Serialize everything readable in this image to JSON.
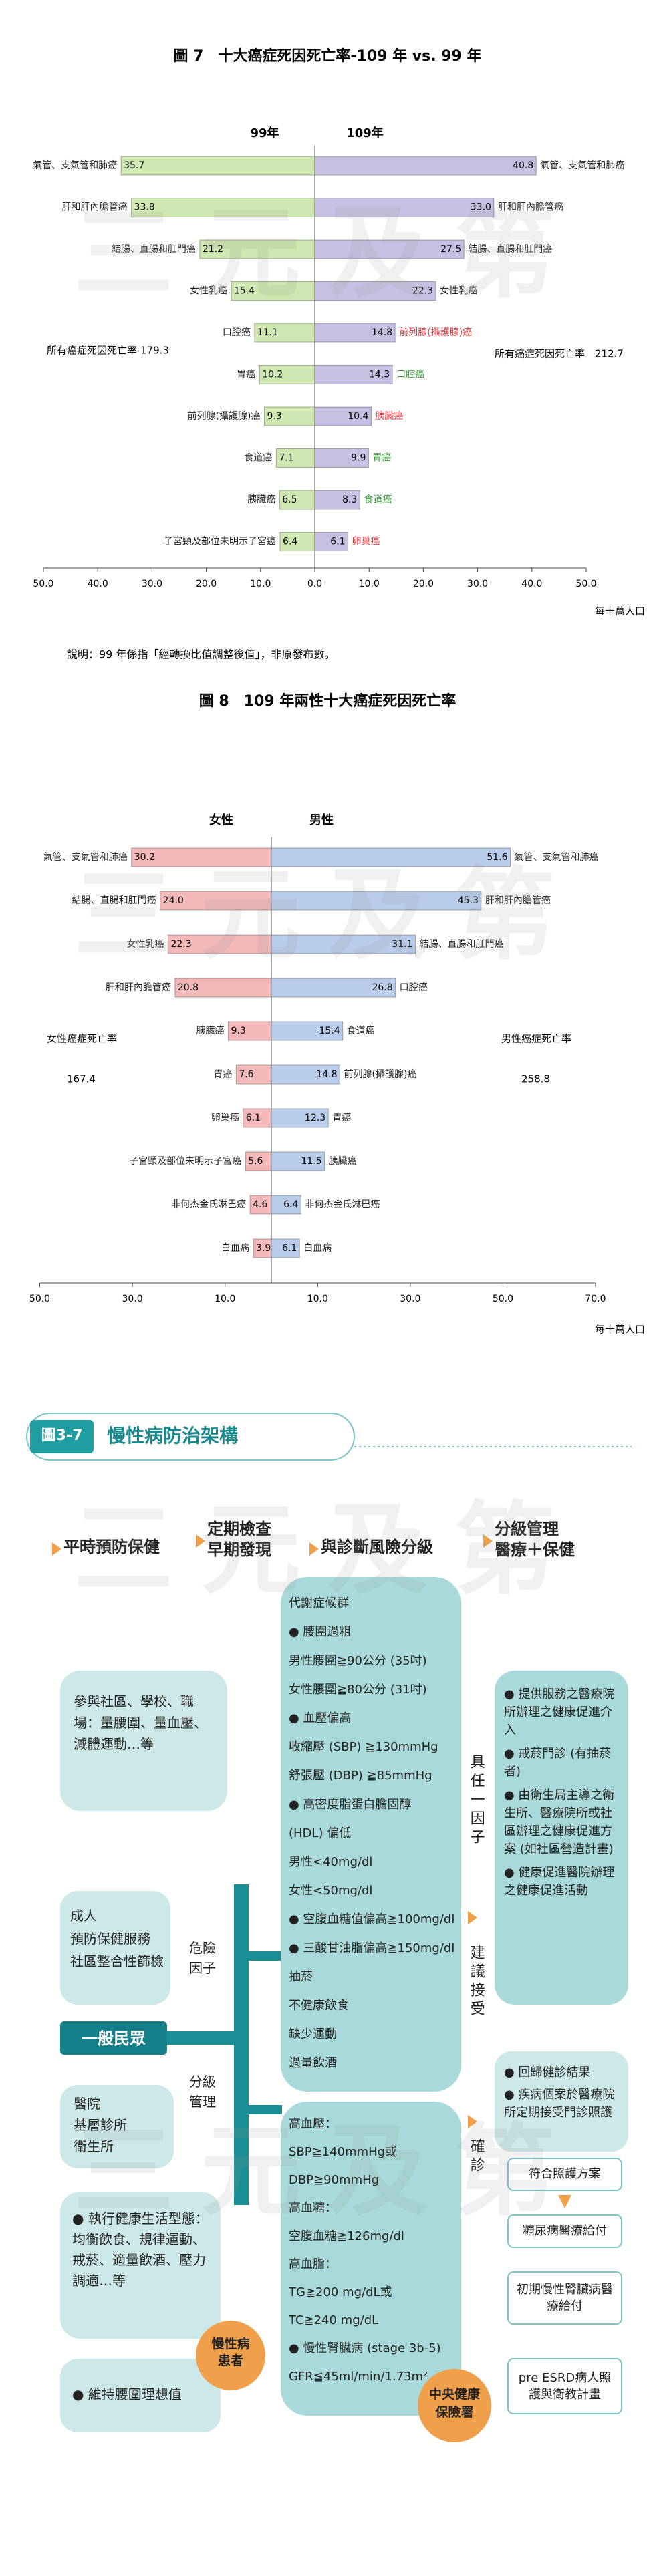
{
  "watermark": "三元及第",
  "chart_data": [
    {
      "type": "butterfly",
      "title": "圖 7　十大癌症死因死亡率-109 年 vs. 99 年",
      "unit_label": "每十萬人口",
      "note": "說明：99 年係指「經轉換比值調整後值」，非原發布數。",
      "left": {
        "name": "99年",
        "color": "#cfe7b0",
        "categories": [
          "氣管、支氣管和肺癌",
          "肝和肝內膽管癌",
          "結腸、直腸和肛門癌",
          "女性乳癌",
          "口腔癌",
          "胃癌",
          "前列腺(攝護腺)癌",
          "食道癌",
          "胰臟癌",
          "子宮頸及部位未明示子宮癌"
        ],
        "values": [
          35.7,
          33.8,
          21.2,
          15.4,
          11.1,
          10.2,
          9.3,
          7.1,
          6.5,
          6.4
        ],
        "value_labels": [
          "35.7",
          "33.8",
          "21.2",
          "15.4",
          "11.1",
          "10.2",
          "9.3",
          "7.1",
          "6.5",
          "6.4"
        ],
        "total_label": "所有癌症死因死亡率",
        "total": 179.3,
        "xlim": [
          0,
          50
        ],
        "ticks": [
          {
            "value": 50,
            "label": "50.0"
          },
          {
            "value": 40,
            "label": "40.0"
          },
          {
            "value": 30,
            "label": "30.0"
          },
          {
            "value": 20,
            "label": "20.0"
          },
          {
            "value": 10,
            "label": "10.0"
          },
          {
            "value": 0,
            "label": "0.0"
          }
        ]
      },
      "right": {
        "name": "109年",
        "color": "#c6c0e2",
        "categories": [
          "氣管、支氣管和肺癌",
          "肝和肝內膽管癌",
          "結腸、直腸和肛門癌",
          "女性乳癌",
          "前列腺(攝護腺)癌",
          "口腔癌",
          "胰臟癌",
          "胃癌",
          "食道癌",
          "卵巢癌"
        ],
        "category_colors": [
          "#222222",
          "#222222",
          "#222222",
          "#222222",
          "#e0383e",
          "#3a9a3a",
          "#e0383e",
          "#3a9a3a",
          "#3a9a3a",
          "#e0383e"
        ],
        "values": [
          40.8,
          33.0,
          27.5,
          22.3,
          14.8,
          14.3,
          10.4,
          9.9,
          8.3,
          6.1
        ],
        "value_labels": [
          "40.8",
          "33.0",
          "27.5",
          "22.3",
          "14.8",
          "14.3",
          "10.4",
          "9.9",
          "8.3",
          "6.1"
        ],
        "total_label": "所有癌症死因死亡率",
        "total": 212.7,
        "xlim": [
          0,
          50
        ],
        "ticks": [
          {
            "value": 10,
            "label": "10.0"
          },
          {
            "value": 20,
            "label": "20.0"
          },
          {
            "value": 30,
            "label": "30.0"
          },
          {
            "value": 40,
            "label": "40.0"
          },
          {
            "value": 50,
            "label": "50.0"
          }
        ]
      }
    },
    {
      "type": "butterfly",
      "title": "圖 8　109 年兩性十大癌症死因死亡率",
      "unit_label": "每十萬人口",
      "left": {
        "name": "女性",
        "color": "#f3b8b8",
        "categories": [
          "氣管、支氣管和肺癌",
          "結腸、直腸和肛門癌",
          "女性乳癌",
          "肝和肝內膽管癌",
          "胰臟癌",
          "胃癌",
          "卵巢癌",
          "子宮頸及部位未明示子宮癌",
          "非何杰金氏淋巴癌",
          "白血病"
        ],
        "values": [
          30.2,
          24.0,
          22.3,
          20.8,
          9.3,
          7.6,
          6.1,
          5.6,
          4.6,
          3.9
        ],
        "value_labels": [
          "30.2",
          "24.0",
          "22.3",
          "20.8",
          "9.3",
          "7.6",
          "6.1",
          "5.6",
          "4.6",
          "3.9"
        ],
        "total_label": "女性癌症死亡率",
        "total": 167.4,
        "xlim": [
          0,
          50
        ],
        "ticks": [
          {
            "value": 50,
            "label": "50.0"
          },
          {
            "value": 30,
            "label": "30.0"
          },
          {
            "value": 10,
            "label": "10.0"
          }
        ]
      },
      "right": {
        "name": "男性",
        "color": "#b9cdea",
        "categories": [
          "氣管、支氣管和肺癌",
          "肝和肝內膽管癌",
          "結腸、直腸和肛門癌",
          "口腔癌",
          "食道癌",
          "前列腺(攝護腺)癌",
          "胃癌",
          "胰臟癌",
          "非何杰金氏淋巴癌",
          "白血病"
        ],
        "values": [
          51.6,
          45.3,
          31.1,
          26.8,
          15.4,
          14.8,
          12.3,
          11.5,
          6.4,
          6.1
        ],
        "value_labels": [
          "51.6",
          "45.3",
          "31.1",
          "26.8",
          "15.4",
          "14.8",
          "12.3",
          "11.5",
          "6.4",
          "6.1"
        ],
        "total_label": "男性癌症死亡率",
        "total": 258.8,
        "xlim": [
          0,
          70
        ],
        "ticks": [
          {
            "value": 10,
            "label": "10.0"
          },
          {
            "value": 30,
            "label": "30.0"
          },
          {
            "value": 50,
            "label": "50.0"
          },
          {
            "value": 70,
            "label": "70.0"
          }
        ]
      }
    }
  ],
  "diagram": {
    "header": {
      "badge": "圖3-7",
      "title": "慢性病防治架構"
    },
    "stages": [
      [
        "平時預防保健"
      ],
      [
        "定期檢查",
        "早期發現"
      ],
      [
        "與診斷風險分級"
      ],
      [
        "分級管理",
        "醫療＋保健"
      ]
    ],
    "left": {
      "community": "參與社區、學校、職場：量腰圍、量血壓、減體運動…等",
      "adult": [
        "成人",
        "預防保健服務",
        "社區整合性篩檢"
      ],
      "public": "一般民眾",
      "providers": [
        "醫院",
        "基層診所",
        "衛生所"
      ],
      "lifestyle": "● 執行健康生活型態：均衡飲食、規律運動、戒菸、適量飲酒、壓力調適…等",
      "waist": "● 維持腰圍理想值"
    },
    "connectors": {
      "risk": [
        "危險",
        "因子"
      ],
      "grading": [
        "分級",
        "管理"
      ]
    },
    "risk_factors": [
      "代謝症候群",
      "● 腰圍過粗",
      "男性腰圍≧90公分 (35吋)",
      "女性腰圍≧80公分 (31吋)",
      "● 血壓偏高",
      "收縮壓 (SBP) ≧130mmHg",
      "舒張壓 (DBP) ≧85mmHg",
      "● 高密度脂蛋白膽固醇",
      "(HDL) 偏低",
      "男性<40mg/dl",
      "女性<50mg/dl",
      "● 空腹血糖值偏高≧100mg/dl",
      "● 三酸甘油脂偏高≧150mg/dl",
      "抽菸",
      "不健康飲食",
      "缺少運動",
      "過量飲酒"
    ],
    "diagnosis": [
      "高血壓：",
      "SBP≧140mmHg或",
      "DBP≧90mmHg",
      "高血糖：",
      "空腹血糖≧126mg/dl",
      "高血脂：",
      "TG≧200 mg/dL或",
      "TC≧240 mg/dL",
      "● 慢性腎臟病 (stage 3b-5)",
      "GFR≦45ml/min/1.73m²"
    ],
    "patient": [
      "慢性病",
      "患者"
    ],
    "right": {
      "any_factor": "具任一因子",
      "suggest": "建議接受",
      "confirmed": "確診",
      "interventions": [
        "● 提供服務之醫療院所辦理之健康促進介入",
        "● 戒菸門診 (有抽菸者)",
        "● 由衛生局主導之衛生所、醫療院所或社區辦理之健康促進方案 (如社區營造計畫)",
        "● 健康促進醫院辦理之健康促進活動"
      ],
      "followup": [
        "● 回歸健診結果",
        "● 疾病個案於醫療院所定期接受門診照護"
      ],
      "programs": [
        "符合照護方案",
        "糖尿病醫療給付",
        "初期慢性腎臟病醫療給付",
        "pre ESRD病人照護與衛教計畫"
      ],
      "insurer": [
        "中央健康",
        "保險署"
      ]
    }
  }
}
